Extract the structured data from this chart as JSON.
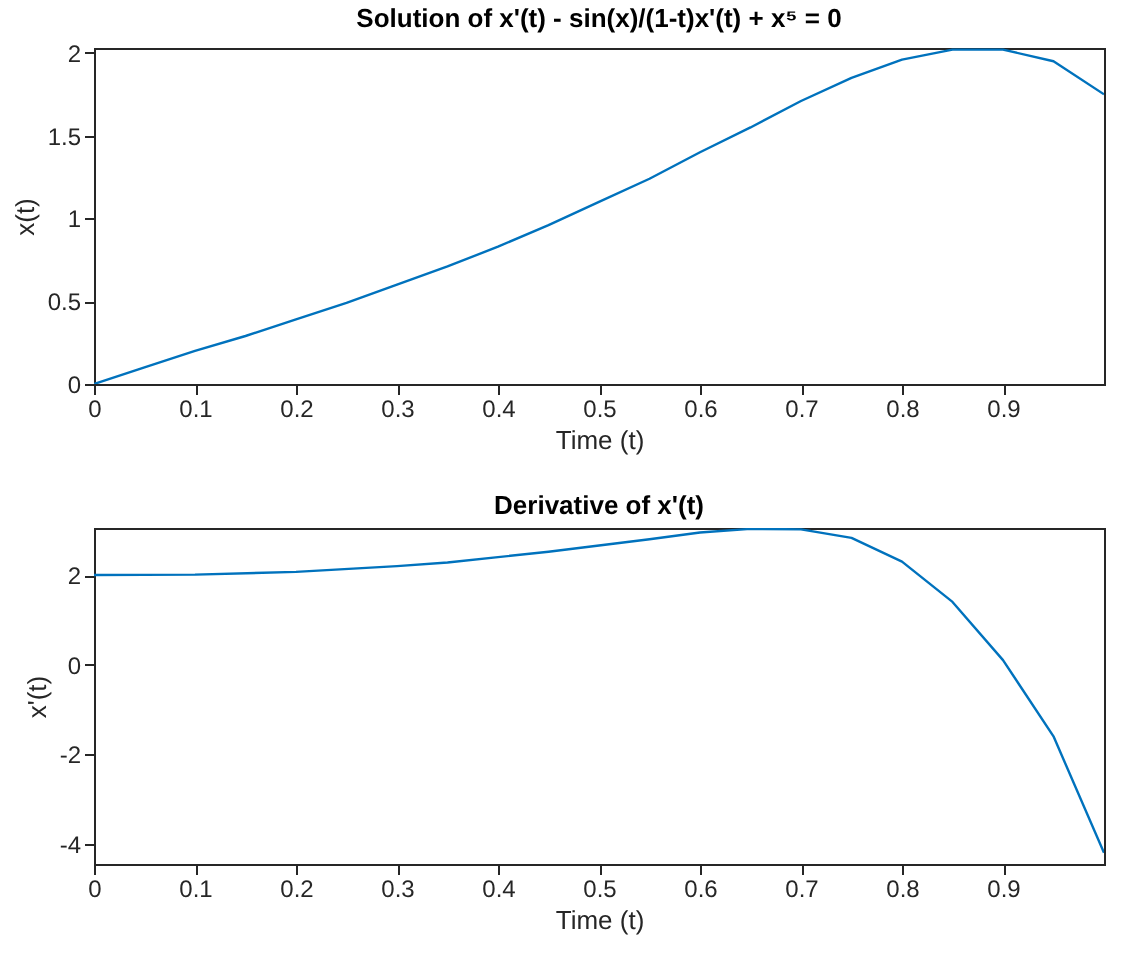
{
  "chart_data": [
    {
      "type": "line",
      "title": "Solution of x'(t) - sin(x)/(1-t)x'(t) + x⁵ = 0",
      "xlabel": "Time (t)",
      "ylabel": "x(t)",
      "x": [
        0,
        0.05,
        0.1,
        0.15,
        0.2,
        0.25,
        0.3,
        0.35,
        0.4,
        0.45,
        0.5,
        0.55,
        0.6,
        0.65,
        0.7,
        0.75,
        0.8,
        0.85,
        0.9,
        0.95,
        1.0
      ],
      "series": [
        {
          "color": "#0072bd",
          "values": [
            0,
            0.1,
            0.2,
            0.29,
            0.39,
            0.49,
            0.6,
            0.71,
            0.83,
            0.96,
            1.1,
            1.24,
            1.4,
            1.55,
            1.71,
            1.85,
            1.96,
            2.02,
            2.02,
            1.95,
            1.75
          ]
        }
      ],
      "xlim": [
        0,
        1
      ],
      "xticks": [
        0,
        0.1,
        0.2,
        0.3,
        0.4,
        0.5,
        0.6,
        0.7,
        0.8,
        0.9
      ],
      "ylim": [
        0,
        2.03
      ],
      "yticks": [
        0,
        0.5,
        1,
        1.5,
        2
      ],
      "grid": false,
      "line_style": "solid"
    },
    {
      "type": "line",
      "title": "Derivative of x'(t)",
      "xlabel": "Time (t)",
      "ylabel": "x'(t)",
      "x": [
        0,
        0.1,
        0.2,
        0.3,
        0.35,
        0.4,
        0.45,
        0.5,
        0.55,
        0.6,
        0.65,
        0.7,
        0.75,
        0.8,
        0.85,
        0.9,
        0.95,
        1.0
      ],
      "series": [
        {
          "color": "#0072bd",
          "values": [
            2,
            2.01,
            2.07,
            2.2,
            2.28,
            2.4,
            2.52,
            2.66,
            2.8,
            2.95,
            3.03,
            3.02,
            2.83,
            2.3,
            1.4,
            0.1,
            -1.6,
            -4.2
          ]
        }
      ],
      "xlim": [
        0,
        1
      ],
      "xticks": [
        0,
        0.1,
        0.2,
        0.3,
        0.4,
        0.5,
        0.6,
        0.7,
        0.8,
        0.9
      ],
      "ylim": [
        -4.45,
        3.05
      ],
      "yticks": [
        -4,
        -2,
        0,
        2
      ],
      "grid": false,
      "line_style": "solid"
    }
  ]
}
